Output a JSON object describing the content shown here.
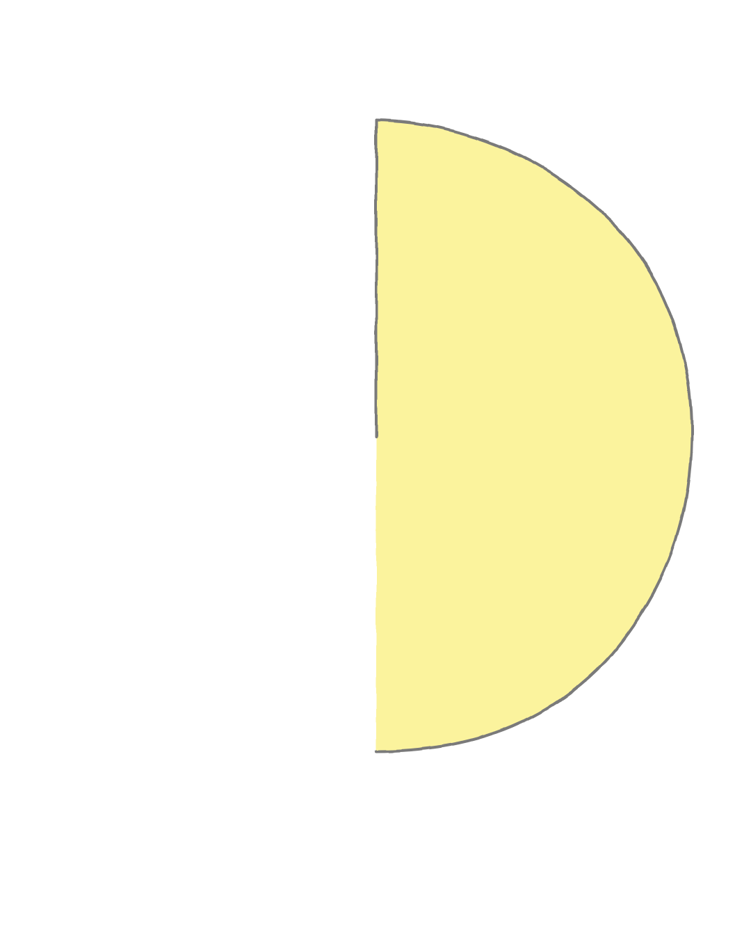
{
  "illustration": {
    "subject": "half-circle-shape",
    "fill_color": "#FBF39D",
    "outline_color": "#7A7A7A",
    "background_color": "#FFFFFF"
  }
}
